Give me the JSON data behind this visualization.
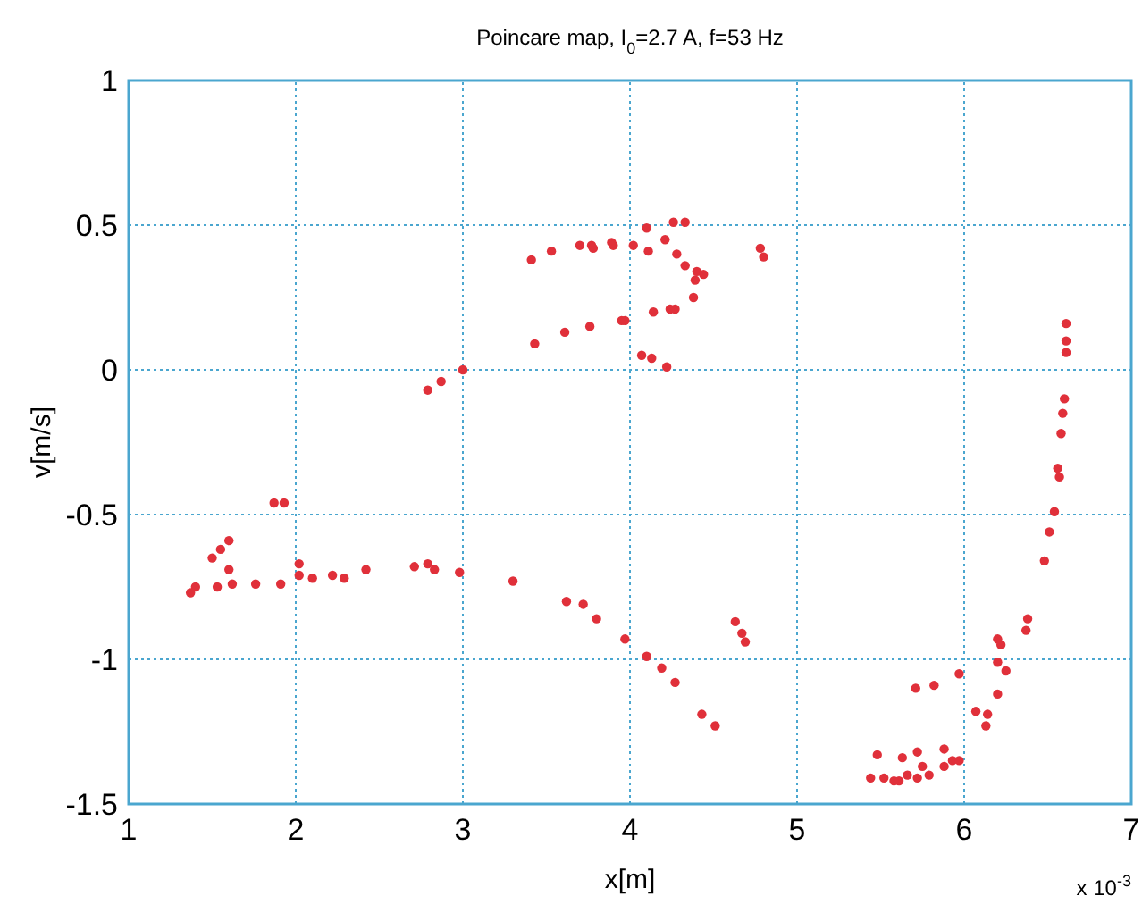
{
  "chart_data": {
    "type": "scatter",
    "title": "Poincare map, I$_{0}$=2.7 A, f=53 Hz",
    "xlabel": "x[m]",
    "ylabel": "v[m/s]",
    "annotations": [
      "x 10$^{-3}$"
    ],
    "xlim": [
      1,
      7
    ],
    "ylim": [
      -1.5,
      1
    ],
    "xticks": [
      1,
      2,
      3,
      4,
      5,
      6,
      7
    ],
    "yticks": [
      -1.5,
      -1,
      -0.5,
      0,
      0.5,
      1
    ],
    "grid": true,
    "marker": "circle",
    "series": [
      {
        "color": "#e0303a",
        "x": [
          3.41,
          3.53,
          3.7,
          3.77,
          3.89,
          3.43,
          3.61,
          3.76,
          3.95,
          3.78,
          3.9,
          4.02,
          4.1,
          4.26,
          4.33,
          4.11,
          4.21,
          4.28,
          4.33,
          4.4,
          4.44,
          4.39,
          4.38,
          4.78,
          4.8,
          3.97,
          4.14,
          4.24,
          4.27,
          4.07,
          4.13,
          4.22,
          6.61,
          6.61,
          6.61,
          6.6,
          6.59,
          6.58,
          6.56,
          6.57,
          6.54,
          6.51,
          6.48,
          2.79,
          2.87,
          3.0,
          1.87,
          1.93,
          1.6,
          1.55,
          1.5,
          1.6,
          1.4,
          1.37,
          1.53,
          1.62,
          1.76,
          1.91,
          2.02,
          2.02,
          2.1,
          2.22,
          2.29,
          2.42,
          2.71,
          2.79,
          2.83,
          2.98,
          3.3,
          3.62,
          3.72,
          3.8,
          3.97,
          4.1,
          4.19,
          4.27,
          4.43,
          4.51,
          4.63,
          4.67,
          4.69,
          5.71,
          5.82,
          5.97,
          6.2,
          6.22,
          6.2,
          6.25,
          6.2,
          6.07,
          6.14,
          6.13,
          6.38,
          6.37,
          5.48,
          5.63,
          5.72,
          5.88,
          5.93,
          5.97,
          5.75,
          5.66,
          5.79,
          5.88,
          5.72,
          5.61,
          5.44,
          5.52,
          5.58
        ],
        "values": [
          0.38,
          0.41,
          0.43,
          0.43,
          0.44,
          0.09,
          0.13,
          0.15,
          0.17,
          0.42,
          0.43,
          0.43,
          0.49,
          0.51,
          0.51,
          0.41,
          0.45,
          0.4,
          0.36,
          0.34,
          0.33,
          0.31,
          0.25,
          0.42,
          0.39,
          0.17,
          0.2,
          0.21,
          0.21,
          0.05,
          0.04,
          0.01,
          0.16,
          0.1,
          0.06,
          -0.1,
          -0.15,
          -0.22,
          -0.34,
          -0.37,
          -0.49,
          -0.56,
          -0.66,
          -0.07,
          -0.04,
          0.0,
          -0.46,
          -0.46,
          -0.59,
          -0.62,
          -0.65,
          -0.69,
          -0.75,
          -0.77,
          -0.75,
          -0.74,
          -0.74,
          -0.74,
          -0.67,
          -0.71,
          -0.72,
          -0.71,
          -0.72,
          -0.69,
          -0.68,
          -0.67,
          -0.69,
          -0.7,
          -0.73,
          -0.8,
          -0.81,
          -0.86,
          -0.93,
          -0.99,
          -1.03,
          -1.08,
          -1.19,
          -1.23,
          -0.87,
          -0.91,
          -0.94,
          -1.1,
          -1.09,
          -1.05,
          -0.93,
          -0.95,
          -1.01,
          -1.04,
          -1.12,
          -1.18,
          -1.19,
          -1.23,
          -0.86,
          -0.9,
          -1.33,
          -1.34,
          -1.32,
          -1.31,
          -1.35,
          -1.35,
          -1.37,
          -1.4,
          -1.4,
          -1.37,
          -1.41,
          -1.42,
          -1.41,
          -1.41,
          -1.42
        ]
      }
    ]
  }
}
